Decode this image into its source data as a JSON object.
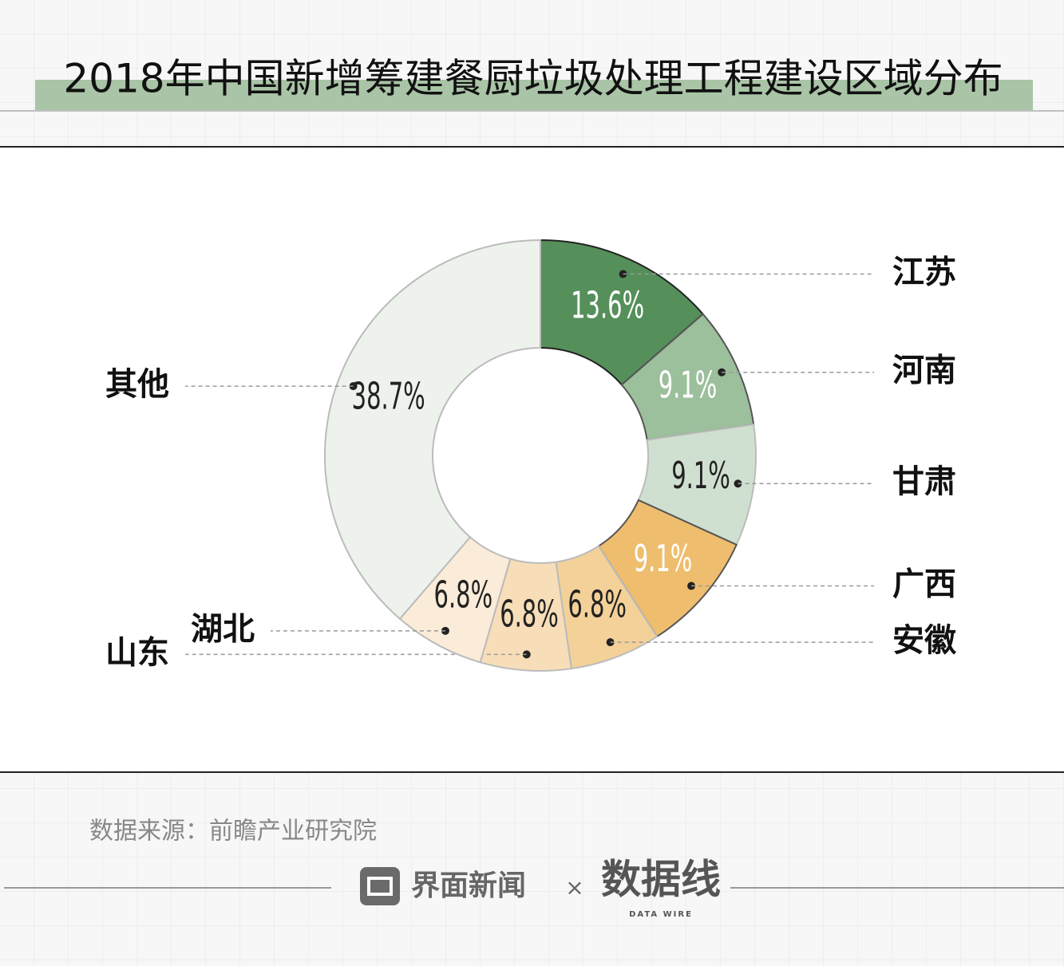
{
  "chart_data": {
    "type": "donut",
    "title": "2018年中国新增筹建餐厨垃圾处理工程建设区域分布",
    "categories": [
      "江苏",
      "河南",
      "甘肃",
      "广西",
      "安徽",
      "山东",
      "湖北",
      "其他"
    ],
    "values": [
      13.6,
      9.1,
      9.1,
      9.1,
      6.8,
      6.8,
      6.8,
      38.7
    ],
    "value_labels": [
      "13.6%",
      "9.1%",
      "9.1%",
      "9.1%",
      "6.8%",
      "6.8%",
      "6.8%",
      "38.7%"
    ],
    "colors": [
      "#558f5a",
      "#9cbf9c",
      "#d0e0d0",
      "#efbd6e",
      "#f3d198",
      "#f7deb8",
      "#fbecd9",
      "#eef2ec"
    ],
    "source": "数据来源：前瞻产业研究院",
    "footer": {
      "brand": "界面新闻",
      "separator": "×",
      "partner": "数据线",
      "partner_sub": "DATA WIRE"
    }
  }
}
